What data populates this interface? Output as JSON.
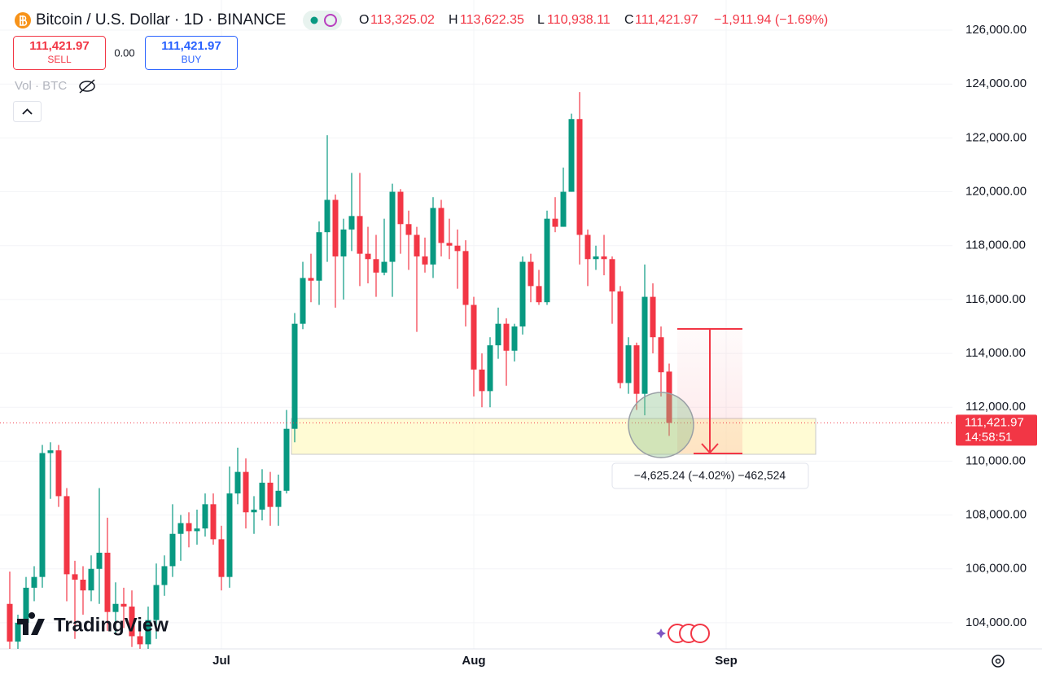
{
  "header": {
    "symbol": "Bitcoin / U.S. Dollar · 1D · BINANCE",
    "o_label": "O",
    "o": "113,325.02",
    "h_label": "H",
    "h": "113,622.35",
    "l_label": "L",
    "l": "110,938.11",
    "c_label": "C",
    "c": "111,421.97",
    "change": "−1,911.94 (−1.69%)"
  },
  "trade": {
    "sell_price": "111,421.97",
    "sell": "SELL",
    "spread": "0.00",
    "buy_price": "111,421.97",
    "buy": "BUY"
  },
  "volume_label": "Vol · BTC",
  "price_label": {
    "price": "111,421.97",
    "countdown": "14:58:51"
  },
  "measure_label": "−4,625.24 (−4.02%) −462,524",
  "logo": "TradingView",
  "chart_data": {
    "type": "candlestick",
    "up_color": "#089981",
    "down_color": "#f23645",
    "grid": true,
    "open": [
      104700,
      103300,
      104000,
      105300,
      105700,
      110300,
      110400,
      108700,
      105800,
      105600,
      105200,
      106000,
      106600,
      104400,
      104700,
      104600,
      103500,
      103200,
      104100,
      105400,
      106100,
      107300,
      107700,
      107400,
      107500,
      108400,
      107100,
      105700,
      108800,
      109600,
      108100,
      108200,
      109200,
      108300,
      108900,
      111200,
      115100,
      116800,
      116700,
      118500,
      119700,
      117600,
      118600,
      119100,
      117700,
      117500,
      117000,
      117400,
      120000,
      118800,
      118400,
      117600,
      117300,
      119400,
      118100,
      118000,
      117800,
      115800,
      113400,
      112600,
      114300,
      115100,
      114100,
      115000,
      117400,
      116500,
      115900,
      119000,
      118700,
      120000,
      122700,
      118400,
      117500,
      117600,
      117500,
      116300,
      112900,
      114300,
      112500,
      116100,
      114600,
      113325.02
    ],
    "high": [
      105900,
      104300,
      105700,
      106100,
      110600,
      110700,
      110600,
      109000,
      106300,
      106100,
      106500,
      109000,
      107900,
      105500,
      105300,
      105200,
      104000,
      104600,
      106200,
      106500,
      108400,
      108000,
      108100,
      108200,
      108800,
      108800,
      107600,
      109800,
      110500,
      110100,
      108700,
      109700,
      109600,
      109500,
      111900,
      115500,
      117400,
      117700,
      118900,
      122100,
      119900,
      119000,
      120700,
      120700,
      118700,
      118400,
      119000,
      120300,
      120100,
      119300,
      118700,
      118300,
      119800,
      119700,
      119000,
      118600,
      118200,
      116100,
      114000,
      114600,
      115700,
      115300,
      115100,
      117600,
      117700,
      117100,
      119300,
      119800,
      120900,
      122900,
      123700,
      118600,
      118000,
      118400,
      117600,
      116500,
      114600,
      114400,
      117300,
      116600,
      115000,
      113622.35
    ],
    "low": [
      103000,
      103000,
      103600,
      104800,
      105300,
      108600,
      108300,
      104800,
      103400,
      104300,
      104800,
      104700,
      103700,
      103600,
      103800,
      103100,
      102900,
      102900,
      103400,
      105000,
      105700,
      106300,
      106800,
      106900,
      107200,
      106900,
      105200,
      105300,
      108400,
      107500,
      107300,
      107800,
      107600,
      107600,
      108800,
      110700,
      114900,
      115900,
      115800,
      117400,
      115700,
      116000,
      117800,
      116500,
      116600,
      116100,
      116900,
      116100,
      117700,
      117100,
      114800,
      117000,
      116800,
      117600,
      117500,
      116400,
      115000,
      112400,
      112000,
      112000,
      113800,
      112800,
      113700,
      114700,
      115900,
      115800,
      115800,
      118500,
      118700,
      120000,
      117300,
      116500,
      117100,
      116900,
      115100,
      112700,
      112500,
      111900,
      111700,
      114000,
      112400,
      110938.11
    ],
    "close": [
      103300,
      104000,
      105300,
      105700,
      110300,
      110400,
      108700,
      105800,
      105600,
      105200,
      106000,
      106600,
      104400,
      104700,
      104600,
      103500,
      103200,
      104100,
      105400,
      106100,
      107300,
      107700,
      107400,
      107500,
      108400,
      107100,
      105700,
      108800,
      109600,
      108100,
      108200,
      109200,
      108300,
      108900,
      111200,
      115100,
      116800,
      116700,
      118500,
      119700,
      117600,
      118600,
      119100,
      117700,
      117500,
      117000,
      117400,
      120000,
      118800,
      118400,
      117600,
      117300,
      119400,
      118100,
      118000,
      117800,
      115800,
      113400,
      112600,
      114300,
      115100,
      114100,
      115000,
      117400,
      116500,
      115900,
      119000,
      118700,
      120000,
      122700,
      118400,
      117500,
      117600,
      117500,
      116300,
      112900,
      114300,
      112500,
      116100,
      114600,
      113300,
      111421.97
    ],
    "xlim": [
      -1.2,
      115.8
    ],
    "xticks": [
      {
        "value": 26,
        "label": "Jul"
      },
      {
        "value": 57,
        "label": "Aug"
      },
      {
        "value": 88,
        "label": "Sep"
      }
    ],
    "ylim": [
      103030,
      127120
    ],
    "yticks": [
      {
        "value": 104000,
        "label": "104,000.00"
      },
      {
        "value": 106000,
        "label": "106,000.00"
      },
      {
        "value": 108000,
        "label": "108,000.00"
      },
      {
        "value": 110000,
        "label": "110,000.00"
      },
      {
        "value": 112000,
        "label": "112,000.00"
      },
      {
        "value": 114000,
        "label": "114,000.00"
      },
      {
        "value": 116000,
        "label": "116,000.00"
      },
      {
        "value": 118000,
        "label": "118,000.00"
      },
      {
        "value": 120000,
        "label": "120,000.00"
      },
      {
        "value": 122000,
        "label": "122,000.00"
      },
      {
        "value": 124000,
        "label": "124,000.00"
      },
      {
        "value": 126000,
        "label": "126,000.00"
      }
    ]
  }
}
